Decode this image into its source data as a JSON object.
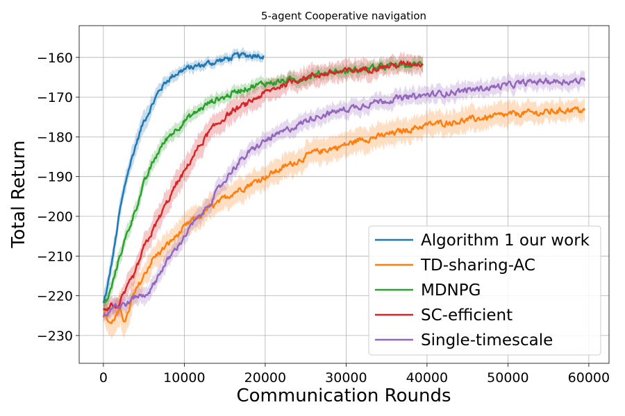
{
  "chart_data": {
    "type": "line",
    "title": "5-agent Cooperative navigation",
    "xlabel": "Communication Rounds",
    "ylabel": "Total Return",
    "xlim": [
      -3000,
      62500
    ],
    "ylim": [
      -237,
      -152
    ],
    "xticks": [
      0,
      10000,
      20000,
      30000,
      40000,
      50000,
      60000
    ],
    "xtick_labels": [
      "0",
      "10000",
      "20000",
      "30000",
      "40000",
      "50000",
      "60000"
    ],
    "yticks": [
      -160,
      -170,
      -180,
      -190,
      -200,
      -210,
      -220,
      -230
    ],
    "ytick_labels": [
      "−160",
      "−170",
      "−180",
      "−190",
      "−200",
      "−210",
      "−220",
      "−230"
    ],
    "grid": true,
    "legend_position": "lower-right",
    "series": [
      {
        "name": "Algorithm 1 our work",
        "color": "#1f77b4",
        "x": [
          0,
          500,
          1000,
          1500,
          2000,
          2500,
          3000,
          4000,
          5000,
          6000,
          7000,
          8000,
          9000,
          10000,
          11000,
          12000,
          13000,
          14000,
          15000,
          16000,
          17000,
          18000,
          19000,
          19800
        ],
        "values": [
          -222,
          -218,
          -212,
          -206,
          -199,
          -194,
          -189,
          -182,
          -176,
          -172,
          -168,
          -165.5,
          -164,
          -163,
          -162.5,
          -162,
          -161.5,
          -161,
          -160.5,
          -160,
          -159.5,
          -159.5,
          -159.2,
          -159.5
        ],
        "band": [
          2.0,
          2.5,
          2.5,
          2.5,
          2.5,
          2.5,
          2.5,
          2.5,
          2.5,
          2.0,
          1.8,
          1.5,
          1.3,
          1.2,
          1.2,
          1.2,
          1.2,
          1.2,
          1.2,
          1.2,
          1.2,
          1.2,
          1.2,
          1.2
        ]
      },
      {
        "name": "TD-sharing-AC",
        "color": "#ff7f0e",
        "x": [
          0,
          500,
          1000,
          1500,
          2000,
          2500,
          3000,
          3500,
          4000,
          5000,
          6000,
          7000,
          8000,
          9000,
          10000,
          11000,
          12000,
          13000,
          14000,
          15000,
          16000,
          17000,
          18000,
          20000,
          22000,
          24000,
          26000,
          28000,
          30000,
          32000,
          34000,
          36000,
          38000,
          40000,
          42000,
          44000,
          46000,
          48000,
          50000,
          52000,
          54000,
          56000,
          58000,
          59500
        ],
        "values": [
          -224,
          -226,
          -227,
          -225,
          -224,
          -226,
          -225,
          -221,
          -219,
          -215,
          -211,
          -209,
          -207,
          -205,
          -203,
          -201,
          -200,
          -198,
          -197,
          -195.5,
          -194,
          -193,
          -192,
          -190,
          -188,
          -186,
          -184,
          -183,
          -182,
          -180.5,
          -180,
          -179,
          -178,
          -177,
          -176.5,
          -176,
          -175.5,
          -175,
          -174.5,
          -174,
          -174,
          -173.5,
          -173,
          -173.5
        ],
        "band": [
          2.5,
          3.0,
          3.5,
          4.0,
          4.0,
          4.0,
          4.0,
          3.5,
          3.5,
          3.0,
          3.0,
          3.0,
          3.0,
          3.0,
          3.0,
          3.0,
          3.0,
          3.0,
          3.0,
          3.0,
          3.0,
          3.0,
          3.0,
          3.0,
          3.0,
          3.0,
          3.0,
          3.0,
          3.0,
          3.0,
          3.0,
          3.0,
          3.0,
          3.0,
          3.0,
          3.0,
          3.0,
          3.0,
          3.0,
          2.5,
          2.5,
          2.5,
          2.5,
          2.5
        ]
      },
      {
        "name": "MDNPG",
        "color": "#2ca02c",
        "x": [
          0,
          500,
          1000,
          1500,
          2000,
          2500,
          3000,
          4000,
          5000,
          6000,
          7000,
          8000,
          9000,
          10000,
          11000,
          12000,
          13000,
          14000,
          15000,
          16000,
          17000,
          18000,
          19000,
          20000,
          22000,
          24000,
          26000,
          28000,
          30000,
          32000,
          34000,
          36000,
          38000,
          39500
        ],
        "values": [
          -222,
          -221,
          -218,
          -214,
          -210,
          -207,
          -204,
          -198,
          -192,
          -187,
          -183,
          -180,
          -178,
          -176,
          -174.5,
          -173,
          -171.5,
          -170.5,
          -170,
          -169,
          -168,
          -167.5,
          -167,
          -166.5,
          -166,
          -165.5,
          -164.5,
          -163.5,
          -163.5,
          -163,
          -162.5,
          -162,
          -162,
          -161.5
        ],
        "band": [
          1.5,
          2.0,
          2.0,
          2.0,
          2.0,
          2.0,
          2.0,
          2.0,
          2.0,
          2.0,
          2.0,
          1.8,
          1.8,
          1.8,
          1.5,
          1.5,
          1.5,
          1.5,
          1.5,
          1.5,
          1.5,
          1.5,
          1.5,
          1.5,
          1.5,
          1.5,
          1.5,
          1.5,
          1.5,
          1.5,
          1.5,
          1.5,
          1.5,
          1.5
        ]
      },
      {
        "name": "SC-efficient",
        "color": "#d62728",
        "x": [
          0,
          500,
          1000,
          1500,
          2000,
          2500,
          3000,
          3500,
          4000,
          5000,
          6000,
          7000,
          8000,
          9000,
          10000,
          11000,
          12000,
          13000,
          14000,
          15000,
          16000,
          17000,
          18000,
          19000,
          20000,
          21000,
          22000,
          24000,
          26000,
          28000,
          30000,
          32000,
          34000,
          36000,
          38000,
          39500
        ],
        "values": [
          -223,
          -223,
          -222,
          -223,
          -222,
          -220,
          -218,
          -216,
          -214,
          -208,
          -204,
          -200,
          -196,
          -192,
          -189,
          -185,
          -182,
          -179,
          -177,
          -175,
          -173.5,
          -172.5,
          -171.5,
          -170,
          -169,
          -168,
          -167,
          -165.5,
          -164.5,
          -164,
          -163.5,
          -163,
          -162.5,
          -162,
          -161.5,
          -161.5
        ],
        "band": [
          2.0,
          2.0,
          2.0,
          2.0,
          2.0,
          2.5,
          2.5,
          2.5,
          2.5,
          3.0,
          3.0,
          3.0,
          3.0,
          3.0,
          3.0,
          3.0,
          3.0,
          2.8,
          2.8,
          2.8,
          2.8,
          2.5,
          2.5,
          2.5,
          2.5,
          2.5,
          2.5,
          2.5,
          2.5,
          2.5,
          2.5,
          2.5,
          2.2,
          2.2,
          2.2,
          2.2
        ]
      },
      {
        "name": "Single-timescale",
        "color": "#9467bd",
        "x": [
          0,
          500,
          1000,
          1500,
          2000,
          2500,
          3000,
          3500,
          4000,
          5000,
          6000,
          7000,
          8000,
          9000,
          10000,
          11000,
          12000,
          13000,
          14000,
          15000,
          16000,
          17000,
          18000,
          19000,
          20000,
          22000,
          24000,
          26000,
          28000,
          30000,
          32000,
          34000,
          36000,
          38000,
          40000,
          42000,
          44000,
          46000,
          48000,
          50000,
          52000,
          54000,
          56000,
          58000,
          59500
        ],
        "values": [
          -225,
          -224,
          -223,
          -222,
          -223,
          -222,
          -222,
          -221,
          -220,
          -220,
          -218,
          -214,
          -211,
          -208,
          -205,
          -202,
          -200,
          -197,
          -194,
          -191,
          -188,
          -186,
          -184,
          -182.5,
          -181,
          -179,
          -177,
          -175,
          -174,
          -173,
          -172,
          -171,
          -170.5,
          -170,
          -169.5,
          -169,
          -168.5,
          -168,
          -167.5,
          -167,
          -166.5,
          -166,
          -166,
          -166,
          -166
        ],
        "band": [
          1.5,
          1.5,
          2.0,
          2.0,
          2.0,
          2.0,
          2.0,
          2.0,
          2.0,
          2.0,
          2.0,
          2.0,
          2.0,
          2.0,
          2.0,
          2.0,
          2.0,
          2.0,
          2.0,
          2.0,
          2.0,
          2.0,
          2.0,
          2.0,
          2.0,
          2.0,
          2.0,
          2.0,
          2.0,
          2.0,
          2.0,
          2.0,
          2.0,
          2.0,
          2.0,
          2.0,
          2.0,
          2.0,
          2.0,
          2.0,
          2.0,
          2.0,
          2.0,
          2.0,
          2.0
        ]
      }
    ]
  }
}
